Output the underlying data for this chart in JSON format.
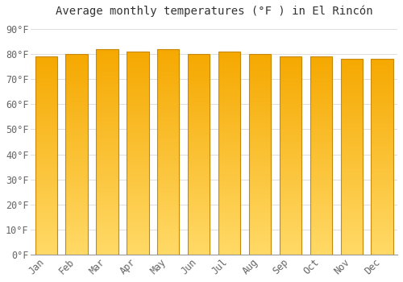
{
  "title": "Average monthly temperatures (°F ) in El Rincón",
  "months": [
    "Jan",
    "Feb",
    "Mar",
    "Apr",
    "May",
    "Jun",
    "Jul",
    "Aug",
    "Sep",
    "Oct",
    "Nov",
    "Dec"
  ],
  "values": [
    79,
    80,
    82,
    81,
    82,
    80,
    81,
    80,
    79,
    79,
    78,
    78
  ],
  "bar_color_top": "#F5A800",
  "bar_color_bottom": "#FFD966",
  "bar_edge_color": "#C8880A",
  "background_color": "#FFFFFF",
  "grid_color": "#DDDDDD",
  "yticks": [
    0,
    10,
    20,
    30,
    40,
    50,
    60,
    70,
    80,
    90
  ],
  "ylim": [
    0,
    93
  ],
  "title_fontsize": 10,
  "tick_fontsize": 8.5,
  "font_family": "monospace"
}
